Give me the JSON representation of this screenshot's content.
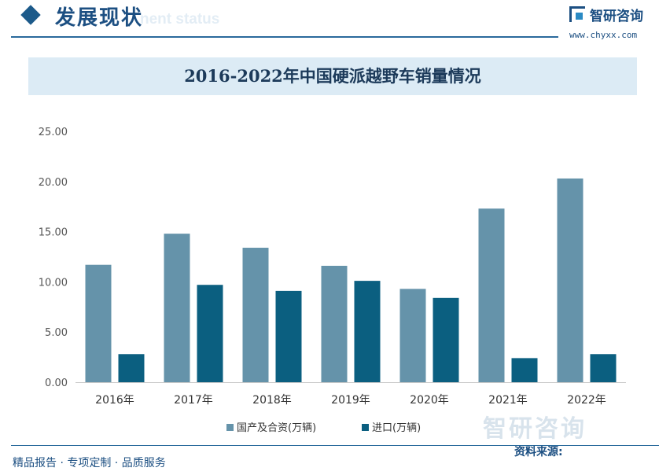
{
  "header": {
    "section_title": "发展现状",
    "section_title_en": "nent status",
    "brand_name": "智研咨询",
    "brand_url": "www.chyxx.com"
  },
  "footer": {
    "slogan": "精品报告 · 专项定制 · 品质服务",
    "source_label": "资料来源:"
  },
  "watermark": {
    "text": "智研咨询"
  },
  "colors": {
    "series_domestic": "#6593aa",
    "series_import": "#0b5f80",
    "brand_blue": "#1c4f82"
  },
  "chart_data": {
    "type": "bar",
    "title": "2016-2022年中国硬派越野车销量情况",
    "categories": [
      "2016年",
      "2017年",
      "2018年",
      "2019年",
      "2020年",
      "2021年",
      "2022年"
    ],
    "series": [
      {
        "name": "国产及合资(万辆)",
        "values": [
          11.7,
          14.8,
          13.4,
          11.6,
          9.3,
          17.3,
          20.3
        ]
      },
      {
        "name": "进口(万辆)",
        "values": [
          2.8,
          9.7,
          9.1,
          10.1,
          8.4,
          2.4,
          2.8
        ]
      }
    ],
    "ylim": [
      0,
      25
    ],
    "yticks": [
      "0.00",
      "5.00",
      "10.00",
      "15.00",
      "20.00",
      "25.00"
    ],
    "grid": false,
    "legend_position": "bottom"
  }
}
